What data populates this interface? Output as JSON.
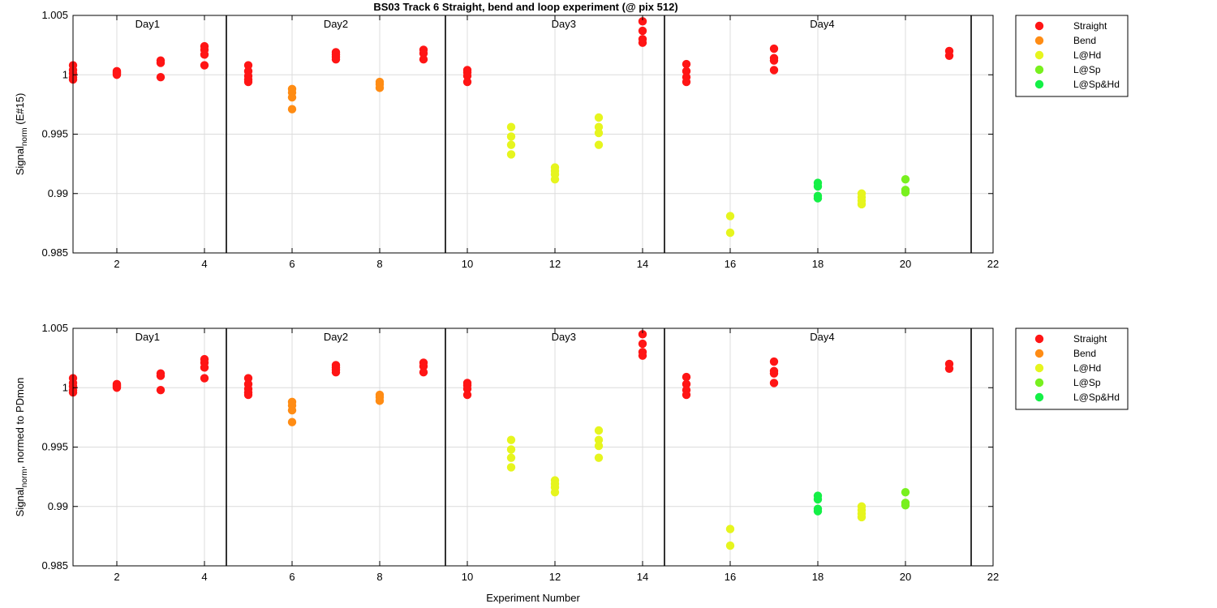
{
  "title": "BS03 Track 6  Straight, bend and loop experiment (@ pix 512)",
  "colors": {
    "Straight": "#ff1515",
    "Bend": "#ff8c14",
    "L@Hd": "#e6f51e",
    "L@Sp": "#78f01e",
    "L@Sp&Hd": "#14f046"
  },
  "chart_data": [
    {
      "type": "scatter",
      "ylabel_main": "Signal",
      "ylabel_sub": "norm",
      "ylabel_tail": " (E#15)",
      "xlabel": "",
      "xlim": [
        1,
        22
      ],
      "ylim": [
        0.985,
        1.005
      ],
      "xticks": [
        2,
        4,
        6,
        8,
        10,
        12,
        14,
        16,
        18,
        20,
        22
      ],
      "yticks": [
        0.985,
        0.99,
        0.995,
        1,
        1.005
      ],
      "ytick_labels": [
        "0.985",
        "0.99",
        "0.995",
        "1",
        "1.005"
      ],
      "grid": true,
      "legend_position": "outside-right",
      "day_separators": [
        4.5,
        9.5,
        14.5,
        21.5
      ],
      "day_labels": [
        {
          "text": "Day1",
          "x": 2.7
        },
        {
          "text": "Day2",
          "x": 7
        },
        {
          "text": "Day3",
          "x": 12.2
        },
        {
          "text": "Day4",
          "x": 18.1
        }
      ],
      "series": [
        {
          "name": "Straight",
          "points": [
            [
              1,
              1.0008
            ],
            [
              1,
              1.0004
            ],
            [
              1,
              1.0001
            ],
            [
              1,
              0.9998
            ],
            [
              1,
              0.9996
            ],
            [
              2,
              1.0003
            ],
            [
              2,
              1.0002
            ],
            [
              2,
              1.0001
            ],
            [
              2,
              1.0
            ],
            [
              3,
              1.0012
            ],
            [
              3,
              1.001
            ],
            [
              3,
              0.9998
            ],
            [
              4,
              1.0024
            ],
            [
              4,
              1.0021
            ],
            [
              4,
              1.0017
            ],
            [
              4,
              1.0008
            ],
            [
              5,
              1.0008
            ],
            [
              5,
              1.0003
            ],
            [
              5,
              0.9999
            ],
            [
              5,
              0.9996
            ],
            [
              5,
              0.9994
            ],
            [
              7,
              1.0019
            ],
            [
              7,
              1.0017
            ],
            [
              7,
              1.0015
            ],
            [
              7,
              1.0013
            ],
            [
              9,
              1.0021
            ],
            [
              9,
              1.0018
            ],
            [
              9,
              1.0013
            ],
            [
              10,
              1.0004
            ],
            [
              10,
              1.0002
            ],
            [
              10,
              0.9999
            ],
            [
              10,
              0.9994
            ],
            [
              14,
              1.0045
            ],
            [
              14,
              1.0037
            ],
            [
              14,
              1.003
            ],
            [
              14,
              1.0027
            ],
            [
              15,
              1.0009
            ],
            [
              15,
              1.0003
            ],
            [
              15,
              0.9998
            ],
            [
              15,
              0.9994
            ],
            [
              17,
              1.0022
            ],
            [
              17,
              1.0014
            ],
            [
              17,
              1.0012
            ],
            [
              17,
              1.0004
            ],
            [
              21,
              1.002
            ],
            [
              21,
              1.0016
            ]
          ]
        },
        {
          "name": "Bend",
          "points": [
            [
              6,
              0.9988
            ],
            [
              6,
              0.9985
            ],
            [
              6,
              0.9981
            ],
            [
              6,
              0.9971
            ],
            [
              8,
              0.9994
            ],
            [
              8,
              0.9992
            ],
            [
              8,
              0.9989
            ]
          ]
        },
        {
          "name": "L@Hd",
          "points": [
            [
              11,
              0.9956
            ],
            [
              11,
              0.9948
            ],
            [
              11,
              0.9941
            ],
            [
              11,
              0.9933
            ],
            [
              12,
              0.9922
            ],
            [
              12,
              0.9919
            ],
            [
              12,
              0.9916
            ],
            [
              12,
              0.9912
            ],
            [
              13,
              0.9964
            ],
            [
              13,
              0.9956
            ],
            [
              13,
              0.9951
            ],
            [
              13,
              0.9941
            ],
            [
              16,
              0.9881
            ],
            [
              16,
              0.9867
            ],
            [
              19,
              0.99
            ],
            [
              19,
              0.9897
            ],
            [
              19,
              0.9894
            ],
            [
              19,
              0.9891
            ]
          ]
        },
        {
          "name": "L@Sp",
          "points": [
            [
              20,
              0.9912
            ],
            [
              20,
              0.9903
            ],
            [
              20,
              0.9901
            ]
          ]
        },
        {
          "name": "L@Sp&Hd",
          "points": [
            [
              18,
              0.9909
            ],
            [
              18,
              0.9906
            ],
            [
              18,
              0.9898
            ],
            [
              18,
              0.9896
            ]
          ]
        }
      ]
    },
    {
      "type": "scatter",
      "ylabel_main": "Signal",
      "ylabel_sub": "norm",
      "ylabel_tail": ", normed to PDmon",
      "xlabel": "Experiment Number",
      "xlim": [
        1,
        22
      ],
      "ylim": [
        0.985,
        1.005
      ],
      "xticks": [
        2,
        4,
        6,
        8,
        10,
        12,
        14,
        16,
        18,
        20,
        22
      ],
      "yticks": [
        0.985,
        0.99,
        0.995,
        1,
        1.005
      ],
      "ytick_labels": [
        "0.985",
        "0.99",
        "0.995",
        "1",
        "1.005"
      ],
      "grid": true,
      "legend_position": "outside-right",
      "day_separators": [
        4.5,
        9.5,
        14.5,
        21.5
      ],
      "day_labels": [
        {
          "text": "Day1",
          "x": 2.7
        },
        {
          "text": "Day2",
          "x": 7
        },
        {
          "text": "Day3",
          "x": 12.2
        },
        {
          "text": "Day4",
          "x": 18.1
        }
      ],
      "series": [
        {
          "name": "Straight",
          "points": [
            [
              1,
              1.0008
            ],
            [
              1,
              1.0004
            ],
            [
              1,
              1.0001
            ],
            [
              1,
              0.9998
            ],
            [
              1,
              0.9996
            ],
            [
              2,
              1.0003
            ],
            [
              2,
              1.0002
            ],
            [
              2,
              1.0001
            ],
            [
              2,
              1.0
            ],
            [
              3,
              1.0012
            ],
            [
              3,
              1.001
            ],
            [
              3,
              0.9998
            ],
            [
              4,
              1.0024
            ],
            [
              4,
              1.0021
            ],
            [
              4,
              1.0017
            ],
            [
              4,
              1.0008
            ],
            [
              5,
              1.0008
            ],
            [
              5,
              1.0003
            ],
            [
              5,
              0.9999
            ],
            [
              5,
              0.9996
            ],
            [
              5,
              0.9994
            ],
            [
              7,
              1.0019
            ],
            [
              7,
              1.0017
            ],
            [
              7,
              1.0015
            ],
            [
              7,
              1.0013
            ],
            [
              9,
              1.0021
            ],
            [
              9,
              1.0018
            ],
            [
              9,
              1.0013
            ],
            [
              10,
              1.0004
            ],
            [
              10,
              1.0002
            ],
            [
              10,
              0.9999
            ],
            [
              10,
              0.9994
            ],
            [
              14,
              1.0045
            ],
            [
              14,
              1.0037
            ],
            [
              14,
              1.003
            ],
            [
              14,
              1.0027
            ],
            [
              15,
              1.0009
            ],
            [
              15,
              1.0003
            ],
            [
              15,
              0.9998
            ],
            [
              15,
              0.9994
            ],
            [
              17,
              1.0022
            ],
            [
              17,
              1.0014
            ],
            [
              17,
              1.0012
            ],
            [
              17,
              1.0004
            ],
            [
              21,
              1.002
            ],
            [
              21,
              1.0016
            ]
          ]
        },
        {
          "name": "Bend",
          "points": [
            [
              6,
              0.9988
            ],
            [
              6,
              0.9985
            ],
            [
              6,
              0.9981
            ],
            [
              6,
              0.9971
            ],
            [
              8,
              0.9994
            ],
            [
              8,
              0.9992
            ],
            [
              8,
              0.9989
            ]
          ]
        },
        {
          "name": "L@Hd",
          "points": [
            [
              11,
              0.9956
            ],
            [
              11,
              0.9948
            ],
            [
              11,
              0.9941
            ],
            [
              11,
              0.9933
            ],
            [
              12,
              0.9922
            ],
            [
              12,
              0.9919
            ],
            [
              12,
              0.9916
            ],
            [
              12,
              0.9912
            ],
            [
              13,
              0.9964
            ],
            [
              13,
              0.9956
            ],
            [
              13,
              0.9951
            ],
            [
              13,
              0.9941
            ],
            [
              16,
              0.9881
            ],
            [
              16,
              0.9867
            ],
            [
              19,
              0.99
            ],
            [
              19,
              0.9897
            ],
            [
              19,
              0.9894
            ],
            [
              19,
              0.9891
            ]
          ]
        },
        {
          "name": "L@Sp",
          "points": [
            [
              20,
              0.9912
            ],
            [
              20,
              0.9903
            ],
            [
              20,
              0.9901
            ]
          ]
        },
        {
          "name": "L@Sp&Hd",
          "points": [
            [
              18,
              0.9909
            ],
            [
              18,
              0.9906
            ],
            [
              18,
              0.9898
            ],
            [
              18,
              0.9896
            ]
          ]
        }
      ]
    }
  ]
}
